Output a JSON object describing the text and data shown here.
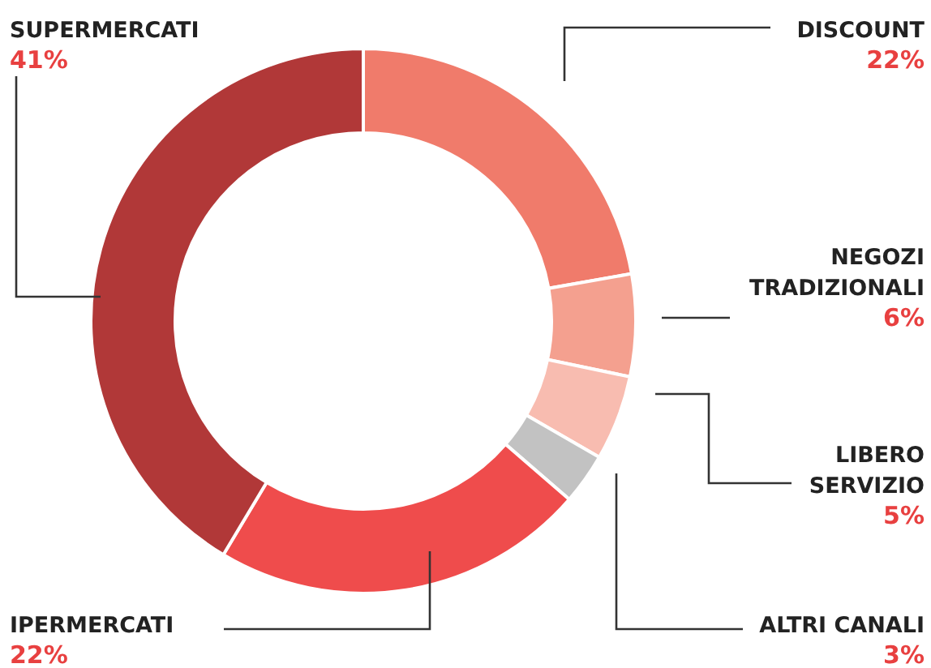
{
  "chart_data": {
    "type": "donut",
    "categories": [
      "DISCOUNT",
      "NEGOZI TRADIZIONALI",
      "LIBERO SERVIZIO",
      "ALTRI CANALI",
      "IPERMERCATI",
      "SUPERMERCATI"
    ],
    "values": [
      22,
      6,
      5,
      3,
      22,
      41
    ],
    "colors": [
      "#f07b6b",
      "#f4a08f",
      "#f8bcb0",
      "#c2c2c2",
      "#ef4c4c",
      "#b13838"
    ],
    "value_labels": [
      "22%",
      "6%",
      "5%",
      "3%",
      "22%",
      "41%"
    ]
  }
}
